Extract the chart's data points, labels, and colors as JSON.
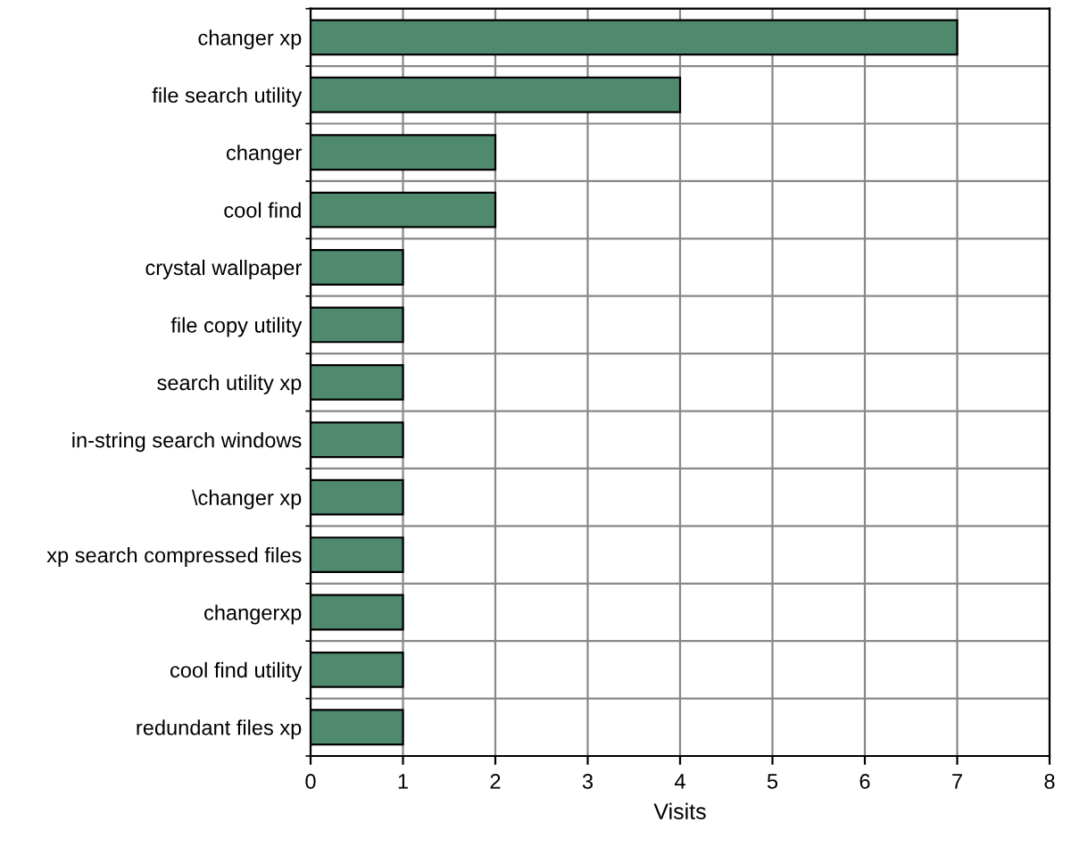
{
  "chart_data": {
    "type": "bar",
    "orientation": "horizontal",
    "xlabel": "Visits",
    "categories": [
      "changer xp",
      "file search utility",
      "changer",
      "cool find",
      "crystal wallpaper",
      "file copy utility",
      "search utility xp",
      "in-string search windows",
      "\\changer xp",
      "xp search compressed files",
      "changerxp",
      "cool find utility",
      "redundant files xp"
    ],
    "values": [
      7,
      4,
      2,
      2,
      1,
      1,
      1,
      1,
      1,
      1,
      1,
      1,
      1
    ],
    "color": "#4f8a6e",
    "xlim": [
      0,
      8
    ],
    "xticks": [
      0,
      1,
      2,
      3,
      4,
      5,
      6,
      7,
      8
    ],
    "grid": true
  }
}
